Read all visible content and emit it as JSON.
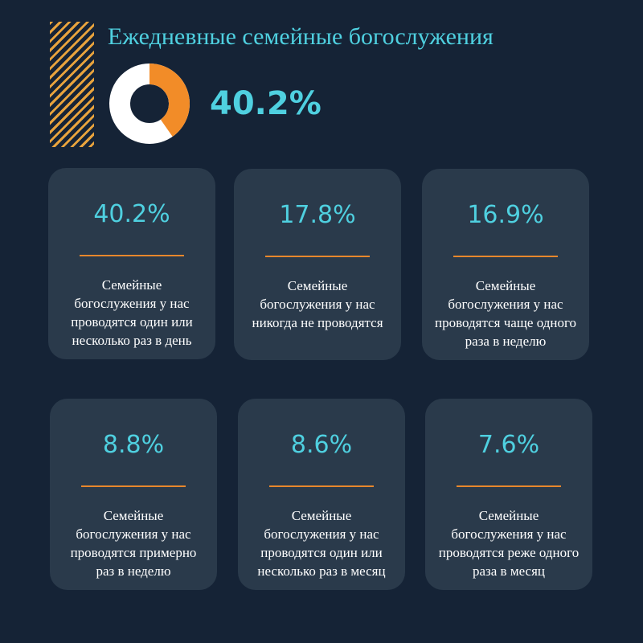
{
  "title": "Ежедневные семейные богослужения",
  "headline_value": "40.2%",
  "colors": {
    "accent_cyan": "#4fd0e0",
    "accent_orange": "#e8872c",
    "background": "#152336",
    "card": "#2a3a4b"
  },
  "chart_data": {
    "type": "pie",
    "title": "Ежедневные семейные богослужения",
    "values": [
      40.2,
      59.8
    ],
    "highlighted_value": 40.2
  },
  "cards": [
    {
      "value": "40.2%",
      "text": "Семейные богослужения у нас проводятся один или несколько раз в день"
    },
    {
      "value": "17.8%",
      "text": "Семейные богослужения у нас никогда не проводятся"
    },
    {
      "value": "16.9%",
      "text": "Семейные богослужения у нас проводятся чаще одного раза в неделю"
    },
    {
      "value": "8.8%",
      "text": "Семейные богослужения у нас проводятся примерно раз в неделю"
    },
    {
      "value": "8.6%",
      "text": "Семейные богослужения у нас проводятся один или несколько раз в месяц"
    },
    {
      "value": "7.6%",
      "text": "Семейные богослужения у нас проводятся реже одного раза в месяц"
    }
  ]
}
